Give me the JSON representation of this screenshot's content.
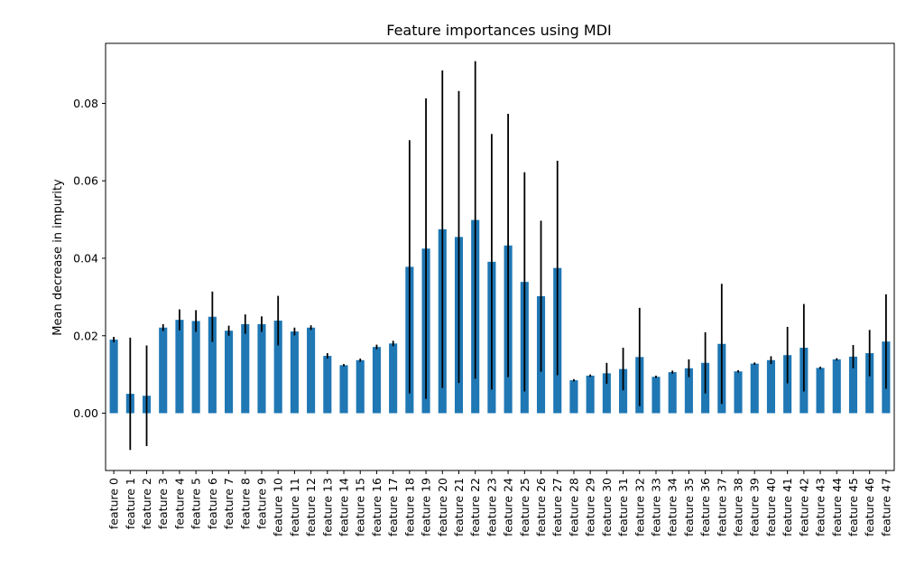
{
  "chart_data": {
    "type": "bar",
    "title": "Feature importances using MDI",
    "xlabel": "",
    "ylabel": "Mean decrease in impurity",
    "ylim": [
      -0.0148,
      0.0955
    ],
    "yticks": [
      0.0,
      0.02,
      0.04,
      0.06,
      0.08
    ],
    "ytick_labels": [
      "0.00",
      "0.02",
      "0.04",
      "0.06",
      "0.08"
    ],
    "bar_color": "#1f77b4",
    "error_color": "#000000",
    "grid": false,
    "categories": [
      "feature 0",
      "feature 1",
      "feature 2",
      "feature 3",
      "feature 4",
      "feature 5",
      "feature 6",
      "feature 7",
      "feature 8",
      "feature 9",
      "feature 10",
      "feature 11",
      "feature 12",
      "feature 13",
      "feature 14",
      "feature 15",
      "feature 16",
      "feature 17",
      "feature 18",
      "feature 19",
      "feature 20",
      "feature 21",
      "feature 22",
      "feature 23",
      "feature 24",
      "feature 25",
      "feature 26",
      "feature 27",
      "feature 28",
      "feature 29",
      "feature 30",
      "feature 31",
      "feature 32",
      "feature 33",
      "feature 34",
      "feature 35",
      "feature 36",
      "feature 37",
      "feature 38",
      "feature 39",
      "feature 40",
      "feature 41",
      "feature 42",
      "feature 43",
      "feature 44",
      "feature 45",
      "feature 46",
      "feature 47"
    ],
    "values": [
      0.019,
      0.005,
      0.0045,
      0.0221,
      0.0241,
      0.0238,
      0.0249,
      0.0213,
      0.023,
      0.023,
      0.0239,
      0.0211,
      0.0221,
      0.0148,
      0.0124,
      0.0137,
      0.0171,
      0.018,
      0.0378,
      0.0425,
      0.0475,
      0.0455,
      0.0499,
      0.0391,
      0.0433,
      0.0339,
      0.0302,
      0.0375,
      0.0085,
      0.0097,
      0.0103,
      0.0114,
      0.0145,
      0.0094,
      0.0106,
      0.0116,
      0.013,
      0.0179,
      0.0108,
      0.0128,
      0.0137,
      0.015,
      0.0169,
      0.0117,
      0.0139,
      0.0146,
      0.0155,
      0.0185
    ],
    "errors": [
      0.0007,
      0.0145,
      0.013,
      0.0009,
      0.0027,
      0.0028,
      0.0065,
      0.0013,
      0.0025,
      0.002,
      0.0064,
      0.001,
      0.0006,
      0.0007,
      0.0003,
      0.0004,
      0.0006,
      0.0007,
      0.0327,
      0.0388,
      0.041,
      0.0377,
      0.041,
      0.033,
      0.034,
      0.0283,
      0.0195,
      0.0277,
      0.0003,
      0.0003,
      0.0027,
      0.0055,
      0.0127,
      0.0003,
      0.0004,
      0.0023,
      0.0079,
      0.0155,
      0.0003,
      0.0003,
      0.001,
      0.0073,
      0.0113,
      0.0003,
      0.0003,
      0.003,
      0.006,
      0.0122
    ]
  }
}
